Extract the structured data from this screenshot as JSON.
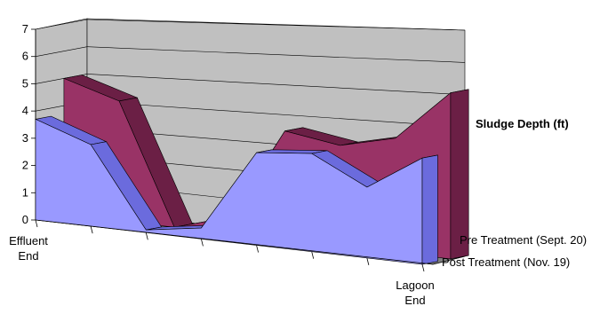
{
  "chart_data": {
    "type": "area",
    "title": "",
    "zlabel": "Sludge Depth (ft)",
    "ylim": [
      0,
      7
    ],
    "y_ticks": [
      "0",
      "1",
      "2",
      "3",
      "4",
      "5",
      "6",
      "7"
    ],
    "categories": [
      {
        "line1": "Effluent",
        "line2": "End"
      },
      {
        "line1": "",
        "line2": ""
      },
      {
        "line1": "",
        "line2": ""
      },
      {
        "line1": "",
        "line2": ""
      },
      {
        "line1": "",
        "line2": ""
      },
      {
        "line1": "",
        "line2": ""
      },
      {
        "line1": "",
        "line2": ""
      },
      {
        "line1": "Lagoon",
        "line2": "End"
      }
    ],
    "series": [
      {
        "name": "Post Treatment (Nov. 19)",
        "color": "#9999ff",
        "values": [
          3.7,
          3.0,
          0.1,
          0.4,
          3.4,
          3.6,
          2.6,
          3.9
        ]
      },
      {
        "name": "Pre Treatment (Sept. 20)",
        "color": "#993366",
        "values": [
          5.0,
          4.4,
          0.0,
          0.6,
          4.0,
          3.7,
          4.2,
          6.1
        ]
      }
    ],
    "grid": true,
    "legend": "none"
  }
}
